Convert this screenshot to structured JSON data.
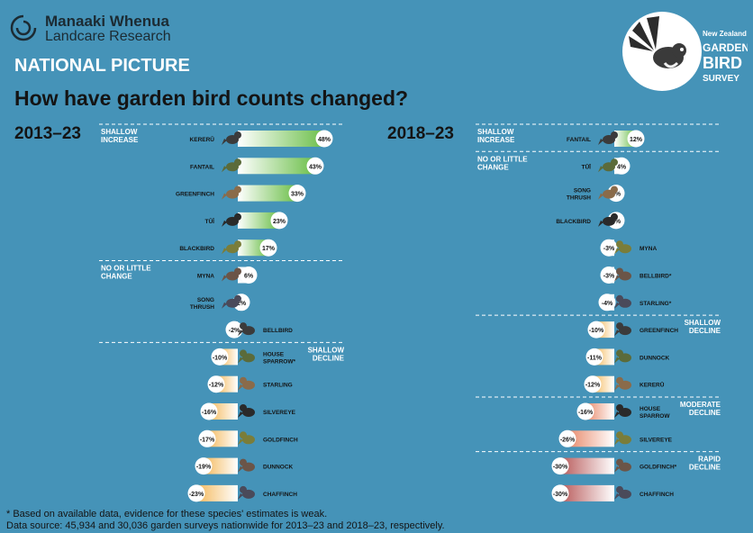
{
  "brand": {
    "name": "Manaaki Whenua",
    "sub": "Landcare Research"
  },
  "header": {
    "section": "NATIONAL PICTURE",
    "title": "How have garden bird counts changed?"
  },
  "survey_badge": {
    "line1": "New Zealand",
    "line2": "GARDEN",
    "line3": "BIRD",
    "line4": "SURVEY"
  },
  "footnotes": {
    "asterisk": "* Based on available data, evidence for these species' estimates is weak.",
    "source": "Data source: 45,934 and 30,036 garden surveys nationwide for 2013–23 and 2018–23, respectively."
  },
  "colors": {
    "background": "#4593b8",
    "increase": "#6cbf4a",
    "shallow_decline": "#f4b95c",
    "moderate_decline": "#e8896a",
    "rapid_decline": "#b85a5a"
  },
  "chart_data": [
    {
      "type": "bar",
      "title": "2013–23",
      "unit": "%",
      "categories": [
        "KERERŪ",
        "FANTAIL",
        "GREENFINCH",
        "TŪĪ",
        "BLACKBIRD",
        "MYNA",
        "SONG THRUSH",
        "BELLBIRD",
        "HOUSE SPARROW*",
        "STARLING",
        "SILVEREYE",
        "GOLDFINCH",
        "DUNNOCK",
        "CHAFFINCH"
      ],
      "values": [
        48,
        43,
        33,
        23,
        17,
        6,
        2,
        -2,
        -10,
        -12,
        -16,
        -17,
        -19,
        -23
      ],
      "labels": [
        "48%",
        "43%",
        "33%",
        "23%",
        "17%",
        "6%",
        "2%",
        "-2%",
        "-10%",
        "-12%",
        "-16%",
        "-17%",
        "-19%",
        "-23%"
      ],
      "groups": [
        {
          "label": "SHALLOW INCREASE",
          "color": "#6cbf4a",
          "start": 0,
          "end": 4
        },
        {
          "label": "NO OR LITTLE CHANGE",
          "color": "#ffffff",
          "start": 5,
          "end": 7
        },
        {
          "label": "SHALLOW DECLINE",
          "color": "#f4b95c",
          "start": 8,
          "end": 13
        }
      ]
    },
    {
      "type": "bar",
      "title": "2018–23",
      "unit": "%",
      "categories": [
        "FANTAIL",
        "TŪĪ",
        "SONG THRUSH",
        "BLACKBIRD",
        "MYNA",
        "BELLBIRD*",
        "STARLING*",
        "GREENFINCH",
        "DUNNOCK",
        "KERERŪ",
        "HOUSE SPARROW",
        "SILVEREYE",
        "GOLDFINCH*",
        "CHAFFINCH"
      ],
      "values": [
        12,
        4,
        0,
        0,
        -3,
        -3,
        -4,
        -10,
        -11,
        -12,
        -16,
        -26,
        -30,
        -30
      ],
      "labels": [
        "12%",
        "4%",
        "0%",
        "0%",
        "-3%",
        "-3%",
        "-4%",
        "-10%",
        "-11%",
        "-12%",
        "-16%",
        "-26%",
        "-30%",
        "-30%"
      ],
      "groups": [
        {
          "label": "SHALLOW INCREASE",
          "color": "#6cbf4a",
          "start": 0,
          "end": 0
        },
        {
          "label": "NO OR LITTLE CHANGE",
          "color": "#ffffff",
          "start": 1,
          "end": 6
        },
        {
          "label": "SHALLOW DECLINE",
          "color": "#f4b95c",
          "start": 7,
          "end": 9
        },
        {
          "label": "MODERATE DECLINE",
          "color": "#e8896a",
          "start": 10,
          "end": 11
        },
        {
          "label": "RAPID DECLINE",
          "color": "#b85a5a",
          "start": 12,
          "end": 13
        }
      ]
    }
  ]
}
